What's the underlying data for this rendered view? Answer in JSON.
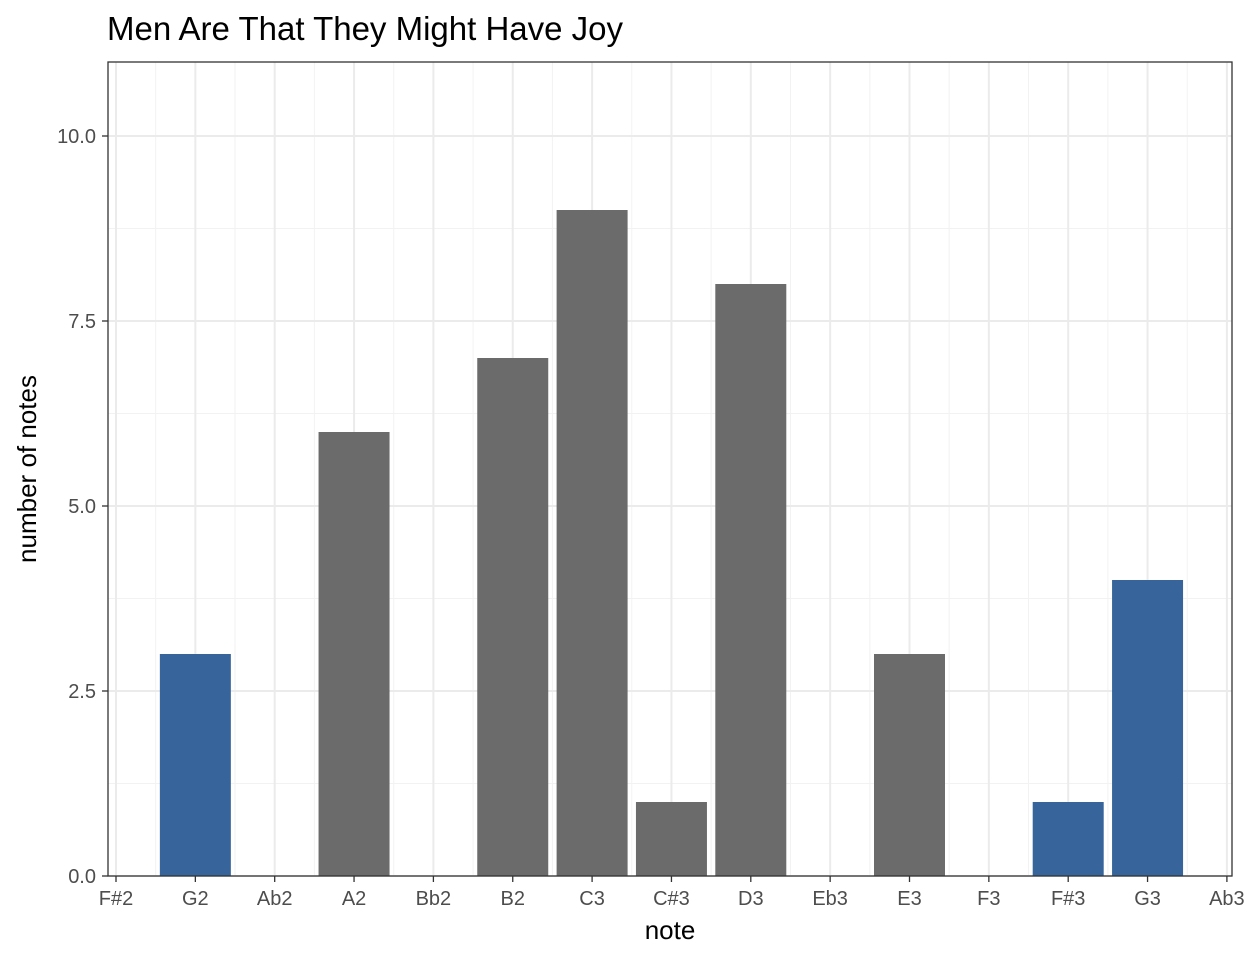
{
  "chart_data": {
    "type": "bar",
    "title": "Men Are That They Might Have Joy",
    "xlabel": "note",
    "ylabel": "number of notes",
    "categories": [
      "F#2",
      "G2",
      "Ab2",
      "A2",
      "Bb2",
      "B2",
      "C3",
      "C#3",
      "D3",
      "Eb3",
      "E3",
      "F3",
      "F#3",
      "G3",
      "Ab3"
    ],
    "values": [
      0,
      3,
      0,
      6,
      0,
      7,
      9,
      1,
      8,
      0,
      3,
      0,
      1,
      4,
      0
    ],
    "highlighted": [
      false,
      true,
      false,
      false,
      false,
      false,
      false,
      false,
      false,
      false,
      false,
      false,
      true,
      true,
      false
    ],
    "ylim": [
      0,
      11
    ],
    "yticks": [
      0,
      2.5,
      5,
      7.5,
      10
    ],
    "ytick_labels": [
      "0.0",
      "2.5",
      "5.0",
      "7.5",
      "10.0"
    ],
    "grid": true,
    "legend": "none",
    "colors": {
      "default": "#6b6b6b",
      "highlight": "#37649a"
    }
  }
}
